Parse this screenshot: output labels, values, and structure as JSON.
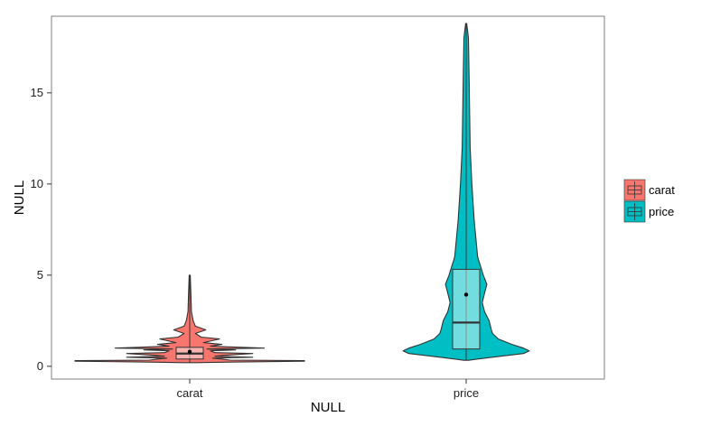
{
  "chart_data": {
    "type": "violin",
    "xlabel": "NULL",
    "ylabel": "NULL",
    "ylim": [
      -0.7,
      19.2
    ],
    "yticks": [
      0,
      5,
      10,
      15
    ],
    "ytick_labels": [
      "0",
      "5",
      "10",
      "15"
    ],
    "categories": [
      "carat",
      "price"
    ],
    "grid": false,
    "legend_position": "right",
    "series": [
      {
        "name": "carat",
        "color": "#F8766D",
        "min": 0.2,
        "max": 5.0,
        "box": {
          "q1": 0.4,
          "median": 0.7,
          "q3": 1.04,
          "mean": 0.8
        },
        "density": [
          [
            0.2,
            0.05
          ],
          [
            0.23,
            0.35
          ],
          [
            0.28,
            1.0
          ],
          [
            0.31,
            1.0
          ],
          [
            0.34,
            0.35
          ],
          [
            0.4,
            0.28
          ],
          [
            0.45,
            0.2
          ],
          [
            0.5,
            0.55
          ],
          [
            0.55,
            0.22
          ],
          [
            0.6,
            0.3
          ],
          [
            0.7,
            0.55
          ],
          [
            0.75,
            0.22
          ],
          [
            0.85,
            0.18
          ],
          [
            0.9,
            0.4
          ],
          [
            0.95,
            0.15
          ],
          [
            1.0,
            0.65
          ],
          [
            1.05,
            0.4
          ],
          [
            1.1,
            0.18
          ],
          [
            1.2,
            0.28
          ],
          [
            1.3,
            0.12
          ],
          [
            1.5,
            0.26
          ],
          [
            1.6,
            0.1
          ],
          [
            1.8,
            0.05
          ],
          [
            2.0,
            0.14
          ],
          [
            2.2,
            0.05
          ],
          [
            2.5,
            0.03
          ],
          [
            3.0,
            0.015
          ],
          [
            4.0,
            0.01
          ],
          [
            5.0,
            0.005
          ]
        ]
      },
      {
        "name": "price",
        "color": "#00BFC4",
        "min": 0.33,
        "max": 18.8,
        "box": {
          "q1": 0.95,
          "median": 2.4,
          "q3": 5.32,
          "mean": 3.93
        },
        "density": [
          [
            0.33,
            0.02
          ],
          [
            0.4,
            0.1
          ],
          [
            0.55,
            0.3
          ],
          [
            0.7,
            0.5
          ],
          [
            0.85,
            0.55
          ],
          [
            1.0,
            0.5
          ],
          [
            1.2,
            0.4
          ],
          [
            1.5,
            0.28
          ],
          [
            1.8,
            0.23
          ],
          [
            2.0,
            0.22
          ],
          [
            2.5,
            0.2
          ],
          [
            3.0,
            0.16
          ],
          [
            3.5,
            0.14
          ],
          [
            4.0,
            0.16
          ],
          [
            4.5,
            0.18
          ],
          [
            5.0,
            0.15
          ],
          [
            6.0,
            0.1
          ],
          [
            7.0,
            0.085
          ],
          [
            8.0,
            0.07
          ],
          [
            10.0,
            0.05
          ],
          [
            12.0,
            0.035
          ],
          [
            14.0,
            0.03
          ],
          [
            16.0,
            0.025
          ],
          [
            18.0,
            0.02
          ],
          [
            18.8,
            0.005
          ]
        ]
      }
    ]
  }
}
